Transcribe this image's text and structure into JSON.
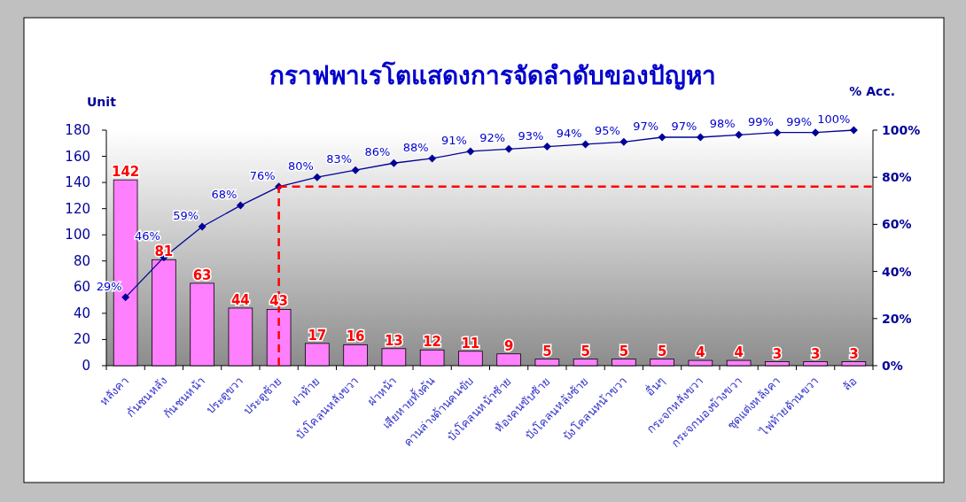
{
  "chart_data": {
    "type": "bar",
    "title": "กราฟพาเรโตแสดงการจัดลำดับของปัญหา",
    "ylabel": "Unit",
    "y2label": "% Acc.",
    "categories": [
      "หลังคา",
      "กันชนหลัง",
      "กันชนหน้า",
      "ประตูขวา",
      "ประตูซ้าย",
      "ฝาท้าย",
      "บังโคลนหลังขวา",
      "ฝาหน้า",
      "เสียหายทั้งคัน",
      "คานล่างด้านคนขับ",
      "บังโคลนหน้าซ้าย",
      "ห้องคนขับซ้าย",
      "บังโคลนหลังซ้าย",
      "บังโคลนหน้าขวา",
      "อื่นๆ",
      "กระจกหลังขวา",
      "กระจกมองข้างขวา",
      "ชุดแต่งหลังคา",
      "ไฟท้ายด้านขวา",
      "ล้อ"
    ],
    "series": [
      {
        "color": "#ff80ff",
        "values": [
          142,
          81,
          63,
          44,
          43,
          17,
          16,
          13,
          12,
          11,
          9,
          5,
          5,
          5,
          5,
          4,
          4,
          3,
          3,
          3
        ],
        "value_labels": [
          "142",
          "81",
          "63",
          "44",
          "43",
          "17",
          "16",
          "13",
          "12",
          "11",
          "9",
          "5",
          "5",
          "5",
          "5",
          "4",
          "4",
          "3",
          "3",
          "3"
        ]
      },
      {
        "type": "line",
        "axis": "y2",
        "color": "#000099",
        "marker": "diamond",
        "values": [
          29,
          46,
          59,
          68,
          76,
          80,
          83,
          86,
          88,
          91,
          92,
          93,
          94,
          95,
          97,
          97,
          98,
          99,
          99,
          100
        ],
        "value_labels": [
          "29%",
          "46%",
          "59%",
          "68%",
          "76%",
          "80%",
          "83%",
          "86%",
          "88%",
          "91%",
          "92%",
          "93%",
          "94%",
          "95%",
          "97%",
          "97%",
          "98%",
          "99%",
          "99%",
          "100%"
        ]
      }
    ],
    "ylim": [
      0,
      180
    ],
    "yticks": [
      0,
      20,
      40,
      60,
      80,
      100,
      120,
      140,
      160,
      180
    ],
    "y2lim": [
      0,
      100
    ],
    "y2ticks": [
      {
        "value": 0,
        "label": "0%"
      },
      {
        "value": 20,
        "label": "20%"
      },
      {
        "value": 40,
        "label": "40%"
      },
      {
        "value": 60,
        "label": "60%"
      },
      {
        "value": 80,
        "label": "80%"
      },
      {
        "value": 100,
        "label": "100%"
      }
    ],
    "ref_lines": [
      {
        "axis": "x",
        "value": "ประตูซ้าย",
        "color": "#ff0000",
        "line_style": "dashed"
      },
      {
        "axis": "y2",
        "value": 76,
        "color": "#ff0000",
        "line_style": "dashed"
      }
    ],
    "grid": false
  }
}
